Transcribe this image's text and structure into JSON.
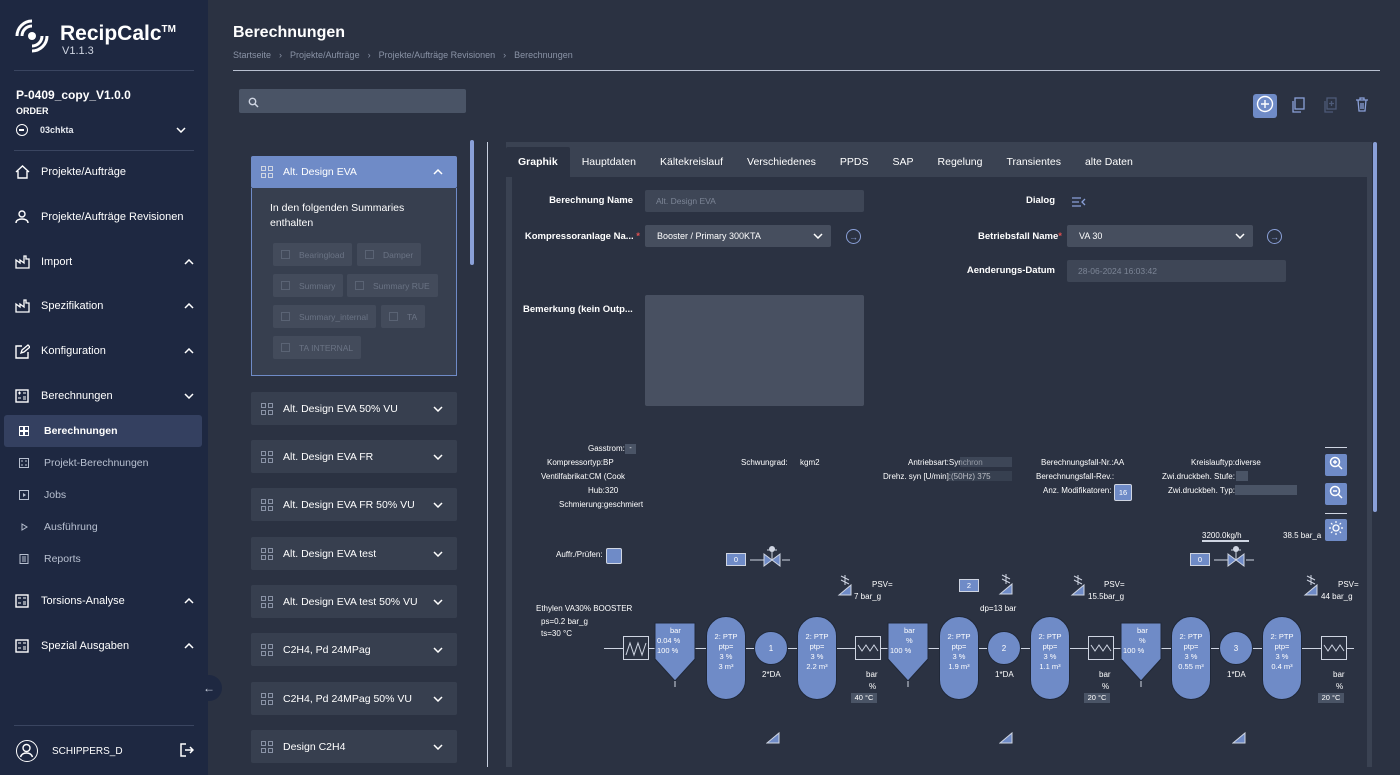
{
  "app": {
    "name": "RecipCalc",
    "tm": "TM",
    "version": "V1.1.3"
  },
  "project": {
    "name": "P-0409_copy_V1.0.0",
    "type": "ORDER",
    "selector": "03chkta"
  },
  "nav": {
    "projects": "Projekte/Aufträge",
    "revisions": "Projekte/Aufträge Revisionen",
    "import": "Import",
    "spec": "Spezifikation",
    "config": "Konfiguration",
    "calc": "Berechnungen",
    "sub": [
      "Berechnungen",
      "Projekt-Berechnungen",
      "Jobs",
      "Ausführung",
      "Reports"
    ],
    "torsion": "Torsions-Analyse",
    "special": "Spezial Ausgaben"
  },
  "user": {
    "name": "SCHIPPERS_D"
  },
  "header": {
    "title": "Berechnungen",
    "breadcrumb": [
      "Startseite",
      "Projekte/Aufträge",
      "Projekte/Aufträge Revisionen",
      "Berechnungen"
    ]
  },
  "search": {
    "placeholder": ""
  },
  "cards": [
    "Alt. Design EVA",
    "Alt. Design EVA 50% VU",
    "Alt. Design EVA FR",
    "Alt. Design EVA FR 50% VU",
    "Alt. Design EVA test",
    "Alt. Design EVA test 50% VU",
    "C2H4, Pd 24MPag",
    "C2H4, Pd 24MPag 50% VU",
    "Design C2H4"
  ],
  "summary": {
    "text": "In den folgenden Summaries enthalten",
    "chips": [
      "Bearingload",
      "Damper",
      "Summary",
      "Summary RUE",
      "Summary_internal",
      "TA",
      "TA INTERNAL"
    ]
  },
  "tabs": [
    "Graphik",
    "Hauptdaten",
    "Kältekreislauf",
    "Verschiedenes",
    "PPDS",
    "SAP",
    "Regelung",
    "Transientes",
    "alte Daten"
  ],
  "form": {
    "name_label": "Berechnung Name",
    "name_value": "Alt. Design EVA",
    "dialog_label": "Dialog",
    "compressor_label": "Kompressoranlage Na...",
    "compressor_value": "Booster / Primary 300KTA",
    "case_label": "Betriebsfall Name",
    "case_value": "VA 30",
    "date_label": "Aenderungs-Datum",
    "date_value": "28-06-2024 16:03:42",
    "remark_label": "Bemerkung (kein Outp..."
  },
  "diagram": {
    "gasstrom": "Gasstrom:",
    "gasstrom_val": "-",
    "kompressortyp": "Kompressortyp:BP",
    "ventil": "Ventilfabrikat:CM (Cook",
    "hub": "Hub:320",
    "schmierung": "Schmierung:geschmiert",
    "schwungrad": "Schwungrad:",
    "schwungrad_unit": "kgm2",
    "antrieb": "Antriebsart:Synchron",
    "drehz": "Drehz. syn [U/min]:(50Hz) 375",
    "fallnr": "Berechnungsfall-Nr.:AA",
    "fallrev": "Berechnungsfall-Rev.:",
    "anzmod": "Anz. Modifikatoren:",
    "anzmod_val": "16",
    "kreislauf": "Kreislauftyp:diverse",
    "zwistufe": "Zwi.druckbeh. Stufe:",
    "zwityp": "Zwi.druckbeh. Typ:-",
    "auffr": "Auffr./Prüfen:",
    "ethylen": "Ethylen VA30% BOOSTER",
    "ps": "ps=0.2 bar_g",
    "ts": "ts=30 °C",
    "flow": "3200.0kg/h",
    "pabs": "38.5 bar_a",
    "dp": "dp=13 bar",
    "psv1": "PSV=",
    "psv1v": "7  bar_g",
    "psv2": "PSV=",
    "psv2v": "15.5bar_g",
    "psv3": "PSV=",
    "psv3v": "44 bar_g",
    "zero": "0",
    "two": "2",
    "sep1": [
      "bar",
      "0.04  %",
      "100   %"
    ],
    "sep_mid": [
      "bar",
      "%",
      "100   %"
    ],
    "vessel": [
      "2: PTP",
      "ptp=",
      "3      %"
    ],
    "vessel_m": [
      "3  m³",
      "2.2  m³",
      "1.9  m³",
      "1.1  m³",
      "0.55  m³",
      "0.4  m³"
    ],
    "pumps": [
      "1",
      "2",
      "3"
    ],
    "pump_lbl": [
      "2*DA",
      "1*DA",
      "1*DA"
    ],
    "hx_lbl": [
      "bar",
      "%"
    ],
    "temps": [
      "40 °C",
      "20 °C",
      "20 °C"
    ]
  },
  "colors": {
    "accent": "#6f8bc7",
    "sidebar": "#1e2841",
    "bg": "#2b3242"
  }
}
